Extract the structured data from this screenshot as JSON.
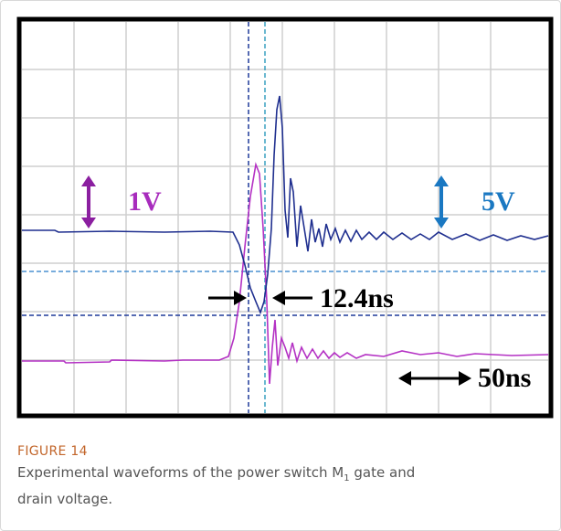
{
  "figure": {
    "annotations": {
      "gate_scale": "1V",
      "drain_scale": "5V",
      "delay": "12.4ns",
      "time_scale": "50ns"
    },
    "caption": {
      "label": "FIGURE 14",
      "text_before": "Experimental waveforms of the power switch M",
      "subscript": "1",
      "text_after": " gate and drain voltage."
    }
  }
}
